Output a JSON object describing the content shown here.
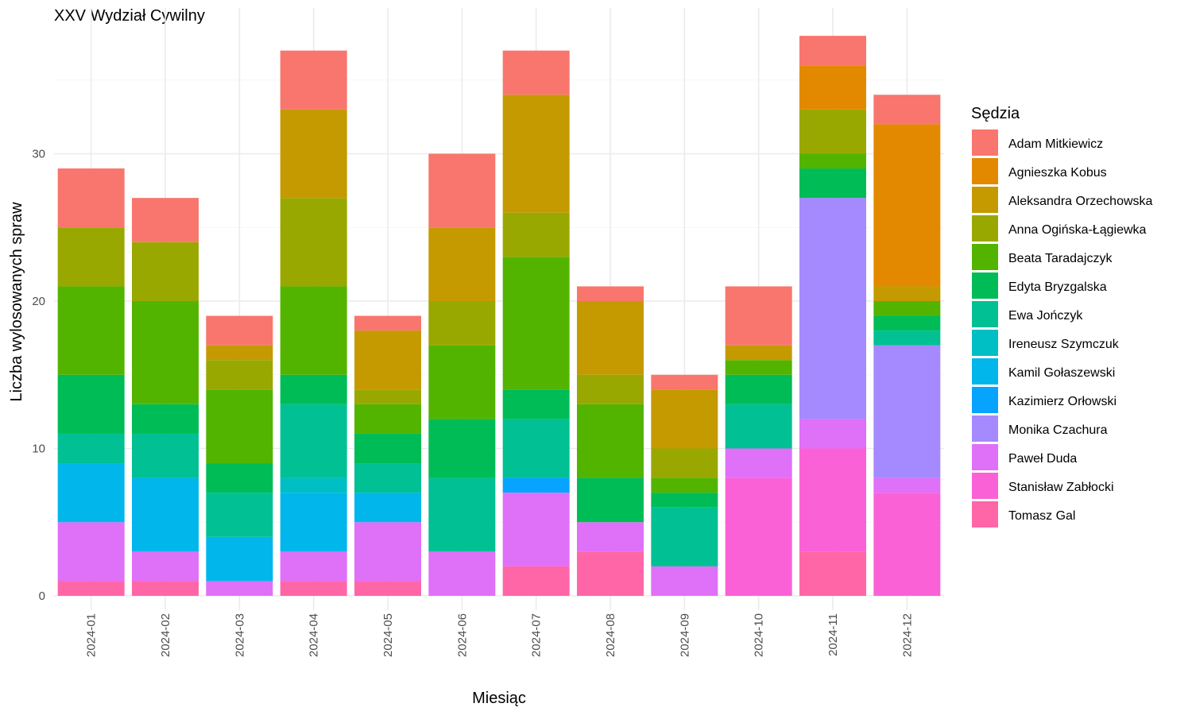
{
  "chart_data": {
    "type": "bar",
    "stacked": true,
    "title": "XXV Wydział Cywilny",
    "xlabel": "Miesiąc",
    "ylabel": "Liczba wylosowanych spraw",
    "ylim": [
      0,
      38
    ],
    "yticks": [
      0,
      10,
      20,
      30
    ],
    "grid": true,
    "legend_title": "Sędzia",
    "legend_position": "right",
    "categories": [
      "2024-01",
      "2024-02",
      "2024-03",
      "2024-04",
      "2024-05",
      "2024-06",
      "2024-07",
      "2024-08",
      "2024-09",
      "2024-10",
      "2024-11",
      "2024-12"
    ],
    "series": [
      {
        "name": "Adam Mitkiewicz",
        "color": "#F8766D",
        "values": [
          4,
          3,
          2,
          4,
          1,
          5,
          3,
          1,
          1,
          4,
          2,
          2
        ]
      },
      {
        "name": "Agnieszka Kobus",
        "color": "#E38900",
        "values": [
          0,
          0,
          0,
          0,
          0,
          0,
          0,
          0,
          0,
          0,
          3,
          11
        ]
      },
      {
        "name": "Aleksandra Orzechowska",
        "color": "#C49A00",
        "values": [
          0,
          0,
          1,
          6,
          4,
          5,
          8,
          5,
          4,
          1,
          0,
          1
        ]
      },
      {
        "name": "Anna Ogińska-Łągiewka",
        "color": "#99A800",
        "values": [
          4,
          4,
          2,
          6,
          1,
          3,
          3,
          2,
          2,
          0,
          3,
          0
        ]
      },
      {
        "name": "Beata Taradajczyk",
        "color": "#53B400",
        "values": [
          6,
          7,
          5,
          6,
          2,
          5,
          9,
          5,
          1,
          1,
          1,
          1
        ]
      },
      {
        "name": "Edyta Bryzgalska",
        "color": "#00BC56",
        "values": [
          4,
          2,
          2,
          2,
          2,
          4,
          2,
          3,
          1,
          2,
          2,
          1
        ]
      },
      {
        "name": "Ewa Jończyk",
        "color": "#00C094",
        "values": [
          2,
          3,
          3,
          5,
          2,
          5,
          4,
          0,
          4,
          3,
          0,
          1
        ]
      },
      {
        "name": "Ireneusz Szymczuk",
        "color": "#00BFC4",
        "values": [
          0,
          0,
          0,
          1,
          0,
          0,
          0,
          0,
          0,
          0,
          0,
          0
        ]
      },
      {
        "name": "Kamil Gołaszewski",
        "color": "#00B6EB",
        "values": [
          4,
          5,
          3,
          4,
          2,
          0,
          0,
          0,
          0,
          0,
          0,
          0
        ]
      },
      {
        "name": "Kazimierz Orłowski",
        "color": "#06A4FF",
        "values": [
          0,
          0,
          0,
          0,
          0,
          0,
          1,
          0,
          0,
          0,
          0,
          0
        ]
      },
      {
        "name": "Monika Czachura",
        "color": "#A58AFF",
        "values": [
          0,
          0,
          0,
          0,
          0,
          0,
          0,
          0,
          0,
          0,
          15,
          9
        ]
      },
      {
        "name": "Paweł Duda",
        "color": "#DF70F8",
        "values": [
          4,
          2,
          1,
          2,
          4,
          3,
          5,
          2,
          2,
          2,
          2,
          1
        ]
      },
      {
        "name": "Stanisław Zabłocki",
        "color": "#FB61D7",
        "values": [
          0,
          0,
          0,
          0,
          0,
          0,
          0,
          0,
          0,
          8,
          7,
          7
        ]
      },
      {
        "name": "Tomasz Gal",
        "color": "#FF66A8",
        "values": [
          1,
          1,
          0,
          1,
          1,
          0,
          2,
          3,
          0,
          0,
          3,
          0
        ]
      }
    ]
  }
}
